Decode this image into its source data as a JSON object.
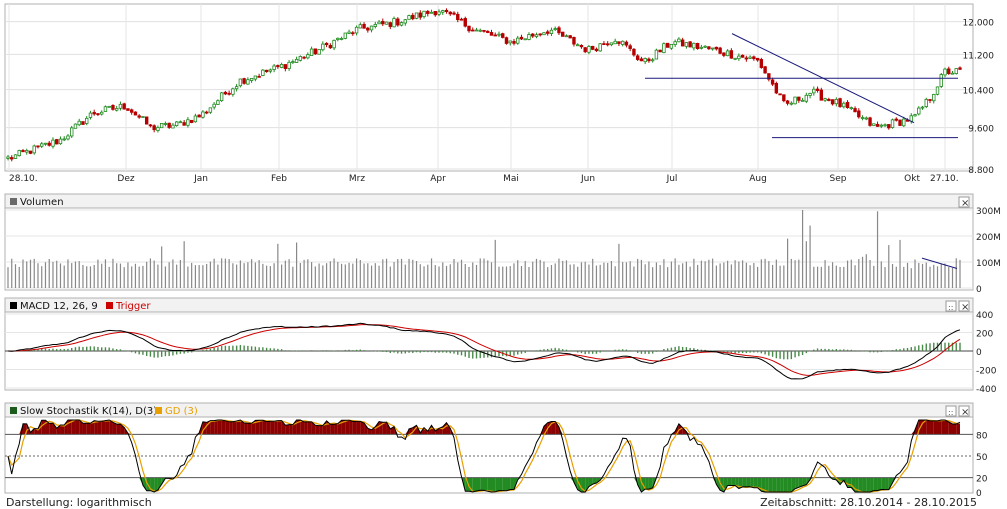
{
  "panels": {
    "volume": {
      "label": "Volumen"
    },
    "macd": {
      "label": "MACD 12, 26, 9",
      "trigger_label": "Trigger"
    },
    "stoch": {
      "label": "Slow Stochastik K(14), D(3)",
      "gd_label": "GD (3)"
    }
  },
  "footer": {
    "display_label": "Darstellung: logarithmisch",
    "period_label": "Zeitabschnitt: 28.10.2014 - 28.10.2015"
  },
  "colors": {
    "up": "#1e8a1e",
    "down": "#b40000",
    "trendline": "#1a1a7a",
    "volume_bar": "#888888",
    "macd_line": "#000000",
    "trigger_line": "#cc0000",
    "histogram": "#4a8a4a",
    "stoch_k": "#000000",
    "stoch_d": "#e8a000",
    "stoch_overbought_fill": "#8b0000",
    "stoch_oversold_fill": "#228b22"
  },
  "chart_data": [
    {
      "type": "candlestick",
      "name": "price",
      "x_tick_labels": [
        "28.10.",
        "Dez",
        "Jan",
        "Feb",
        "Mrz",
        "Apr",
        "Mai",
        "Jun",
        "Jul",
        "Aug",
        "Sep",
        "Okt",
        "27.10."
      ],
      "y_tick_labels": [
        "12.000",
        "11.200",
        "10.400",
        "9.600",
        "8.800"
      ],
      "y_ticks": [
        12000,
        11200,
        10400,
        9600,
        8800
      ],
      "ylim": [
        8800,
        12400
      ],
      "log_scale": true,
      "anchors": [
        [
          "28.10.",
          9000
        ],
        [
          "Nov",
          9350
        ],
        [
          "Nov",
          9900
        ],
        [
          "Dez",
          10050
        ],
        [
          "Dez",
          9600
        ],
        [
          "Dez",
          9650
        ],
        [
          "Jan",
          9850
        ],
        [
          "Jan",
          10600
        ],
        [
          "Feb",
          10900
        ],
        [
          "Feb",
          11300
        ],
        [
          "Mrz",
          11800
        ],
        [
          "Mrz",
          12000
        ],
        [
          "Apr",
          12300
        ],
        [
          "Apr",
          11800
        ],
        [
          "Mai",
          11500
        ],
        [
          "Mai",
          11800
        ],
        [
          "Jun",
          11300
        ],
        [
          "Jun",
          11600
        ],
        [
          "Jun",
          11000
        ],
        [
          "Jul",
          11500
        ],
        [
          "Jul",
          11300
        ],
        [
          "Aug",
          11050
        ],
        [
          "Aug",
          10050
        ],
        [
          "Aug",
          10350
        ],
        [
          "Sep",
          10100
        ],
        [
          "Sep",
          9600
        ],
        [
          "Okt",
          9800
        ],
        [
          "Okt",
          10200
        ],
        [
          "27.10.",
          10800
        ]
      ],
      "support_level_1": 10650,
      "support_level_2": 9400,
      "trendline_from": [
        11700,
        "Jul"
      ],
      "trendline_to": [
        9700,
        "Okt"
      ]
    },
    {
      "type": "bar",
      "name": "volume",
      "y_tick_labels": [
        "300M",
        "200M",
        "100M",
        "0"
      ],
      "ylim": [
        0,
        300000000
      ]
    },
    {
      "type": "line",
      "name": "macd",
      "y_tick_labels": [
        "400",
        "200",
        "0",
        "-200",
        "-400"
      ],
      "ylim": [
        -400,
        400
      ],
      "series": [
        {
          "name": "MACD 12, 26, 9"
        },
        {
          "name": "Trigger"
        }
      ]
    },
    {
      "type": "line",
      "name": "stochastic",
      "y_tick_labels": [
        "80",
        "50",
        "20",
        "0"
      ],
      "ylim": [
        0,
        100
      ],
      "levels": [
        80,
        50,
        20
      ],
      "series": [
        {
          "name": "Slow Stochastik K(14), D(3)"
        },
        {
          "name": "GD (3)"
        }
      ]
    }
  ]
}
